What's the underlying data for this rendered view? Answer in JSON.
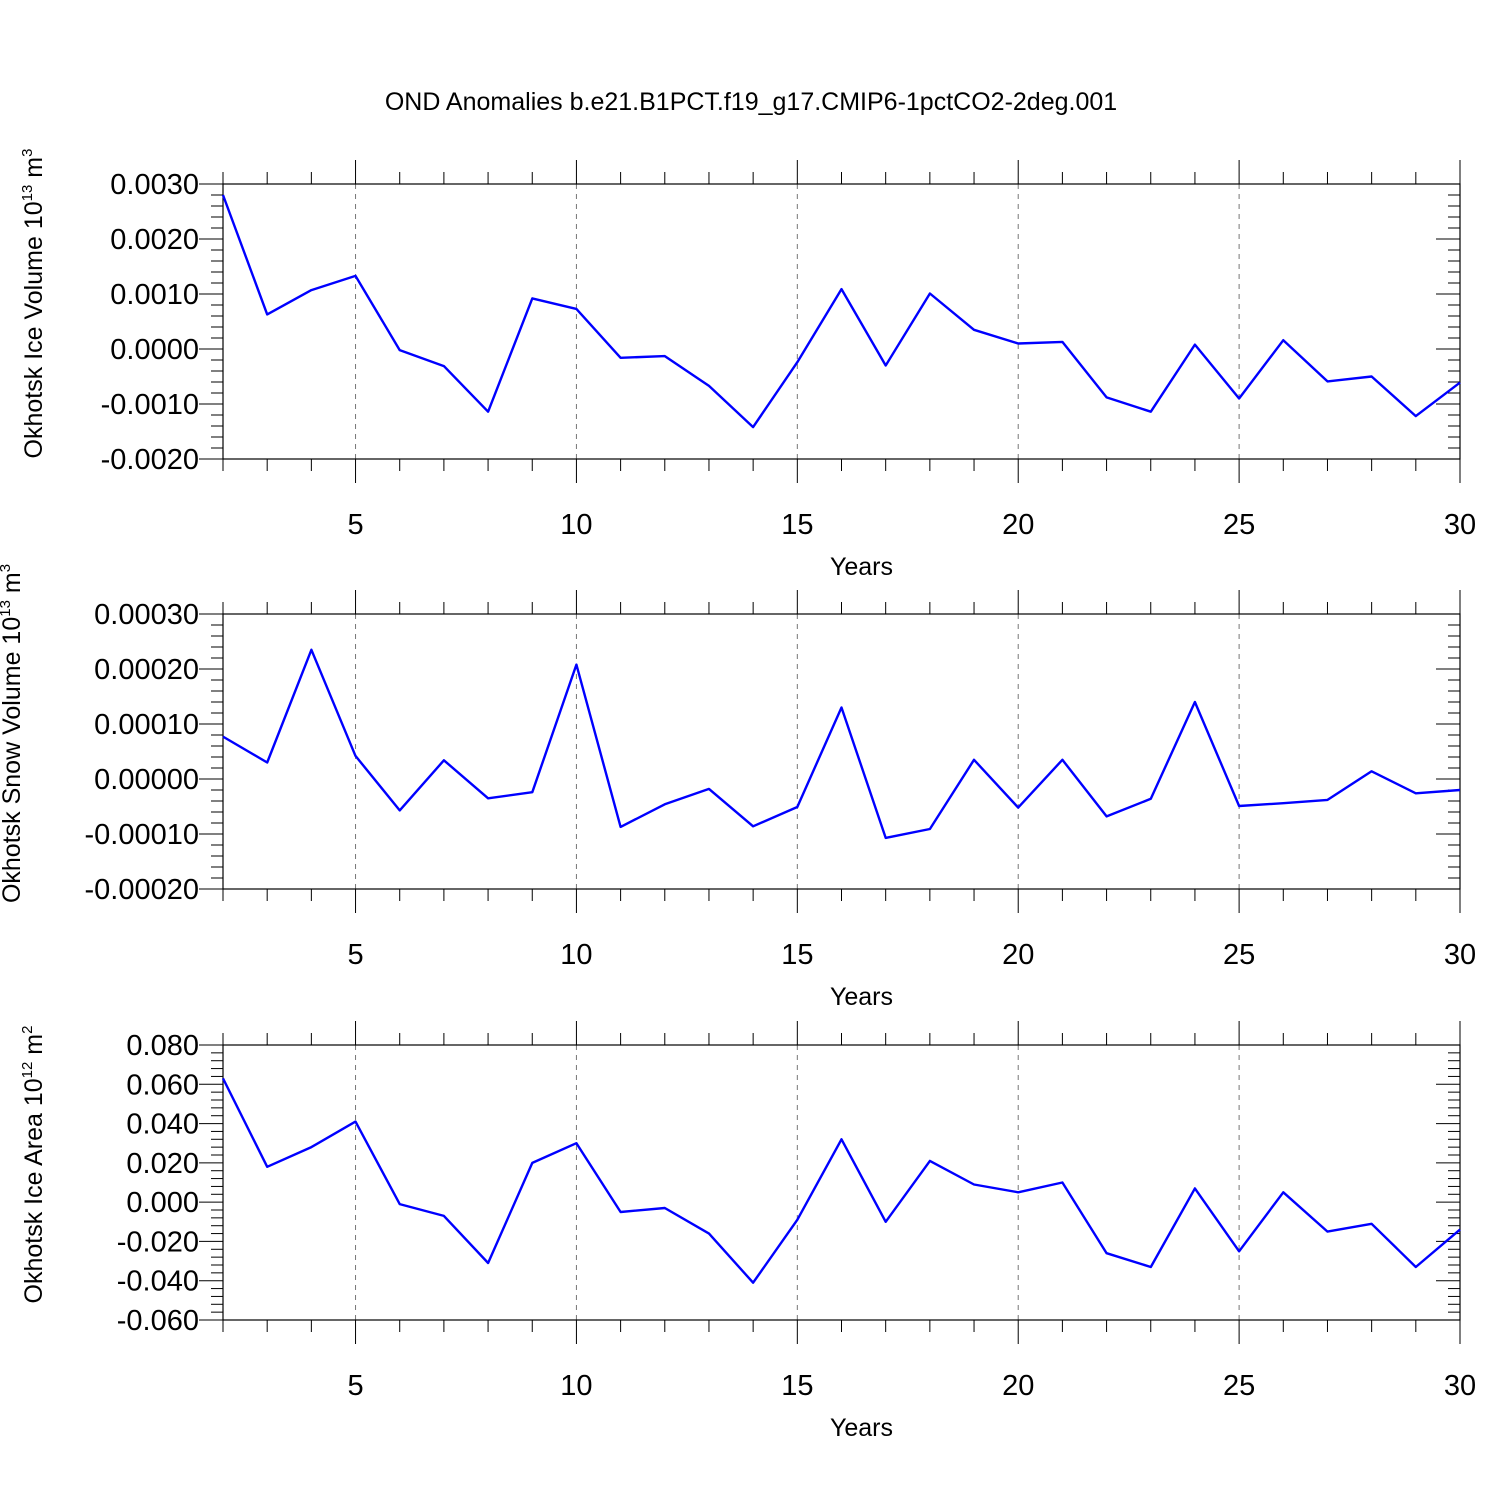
{
  "title": "OND Anomalies b.e21.B1PCT.f19_g17.CMIP6-1pctCO2-2deg.001",
  "line_color": "#0000ff",
  "chart_data": [
    {
      "type": "line",
      "ylabel": "Okhotsk Ice Volume 10",
      "ylabel_exp": "13",
      "ylabel_unit": " m",
      "ylabel_unit_exp": "3",
      "xlabel": "Years",
      "xlim": [
        2,
        30
      ],
      "ylim": [
        -0.002,
        0.003
      ],
      "xticks": [
        5,
        10,
        15,
        20,
        25,
        30
      ],
      "xtick_labels": [
        "5",
        "10",
        "15",
        "20",
        "25",
        "30"
      ],
      "yticks": [
        -0.002,
        -0.001,
        0.0,
        0.001,
        0.002,
        0.003
      ],
      "ytick_labels": [
        "-0.0020",
        "-0.0010",
        "0.0000",
        "0.0010",
        "0.0020",
        "0.0030"
      ],
      "grid_x": true,
      "x": [
        2,
        3,
        4,
        5,
        6,
        7,
        8,
        9,
        10,
        11,
        12,
        13,
        14,
        15,
        16,
        17,
        18,
        19,
        20,
        21,
        22,
        23,
        24,
        25,
        26,
        27,
        28,
        29,
        30
      ],
      "y": [
        0.0028,
        0.00063,
        0.00107,
        0.00133,
        -2e-05,
        -0.00031,
        -0.00114,
        0.00092,
        0.00073,
        -0.00016,
        -0.00013,
        -0.00067,
        -0.00142,
        -0.00024,
        0.00109,
        -0.0003,
        0.00101,
        0.00035,
        0.0001,
        0.00013,
        -0.00088,
        -0.00114,
        8e-05,
        -0.0009,
        0.00016,
        -0.00059,
        -0.0005,
        -0.00122,
        -0.00061
      ]
    },
    {
      "type": "line",
      "ylabel": "Okhotsk Snow Volume 10",
      "ylabel_exp": "13",
      "ylabel_unit": " m",
      "ylabel_unit_exp": "3",
      "xlabel": "Years",
      "xlim": [
        2,
        30
      ],
      "ylim": [
        -0.0002,
        0.0003
      ],
      "xticks": [
        5,
        10,
        15,
        20,
        25,
        30
      ],
      "xtick_labels": [
        "5",
        "10",
        "15",
        "20",
        "25",
        "30"
      ],
      "yticks": [
        -0.0002,
        -0.0001,
        0.0,
        0.0001,
        0.0002,
        0.0003
      ],
      "ytick_labels": [
        "-0.00020",
        "-0.00010",
        "0.00000",
        "0.00010",
        "0.00020",
        "0.00030"
      ],
      "grid_x": true,
      "x": [
        2,
        3,
        4,
        5,
        6,
        7,
        8,
        9,
        10,
        11,
        12,
        13,
        14,
        15,
        16,
        17,
        18,
        19,
        20,
        21,
        22,
        23,
        24,
        25,
        26,
        27,
        28,
        29,
        30
      ],
      "y": [
        7.7e-05,
        3e-05,
        0.000235,
        4.2e-05,
        -5.7e-05,
        3.4e-05,
        -3.5e-05,
        -2.4e-05,
        0.000208,
        -8.7e-05,
        -4.6e-05,
        -1.8e-05,
        -8.6e-05,
        -5.1e-05,
        0.00013,
        -0.000107,
        -9.1e-05,
        3.5e-05,
        -5.2e-05,
        3.5e-05,
        -6.8e-05,
        -3.6e-05,
        0.00014,
        -4.9e-05,
        -4.4e-05,
        -3.8e-05,
        1.4e-05,
        -2.6e-05,
        -2e-05
      ]
    },
    {
      "type": "line",
      "ylabel": "Okhotsk Ice Area 10",
      "ylabel_exp": "12",
      "ylabel_unit": " m",
      "ylabel_unit_exp": "2",
      "xlabel": "Years",
      "xlim": [
        2,
        30
      ],
      "ylim": [
        -0.06,
        0.08
      ],
      "xticks": [
        5,
        10,
        15,
        20,
        25,
        30
      ],
      "xtick_labels": [
        "5",
        "10",
        "15",
        "20",
        "25",
        "30"
      ],
      "yticks": [
        -0.06,
        -0.04,
        -0.02,
        0.0,
        0.02,
        0.04,
        0.06,
        0.08
      ],
      "ytick_labels": [
        "-0.060",
        "-0.040",
        "-0.020",
        "0.000",
        "0.020",
        "0.040",
        "0.060",
        "0.080"
      ],
      "grid_x": true,
      "x": [
        2,
        3,
        4,
        5,
        6,
        7,
        8,
        9,
        10,
        11,
        12,
        13,
        14,
        15,
        16,
        17,
        18,
        19,
        20,
        21,
        22,
        23,
        24,
        25,
        26,
        27,
        28,
        29,
        30
      ],
      "y": [
        0.063,
        0.018,
        0.028,
        0.041,
        -0.001,
        -0.007,
        -0.031,
        0.02,
        0.03,
        -0.005,
        -0.003,
        -0.016,
        -0.041,
        -0.009,
        0.032,
        -0.01,
        0.021,
        0.009,
        0.005,
        0.01,
        -0.026,
        -0.033,
        0.007,
        -0.025,
        0.005,
        -0.015,
        -0.011,
        -0.033,
        -0.014
      ]
    }
  ]
}
